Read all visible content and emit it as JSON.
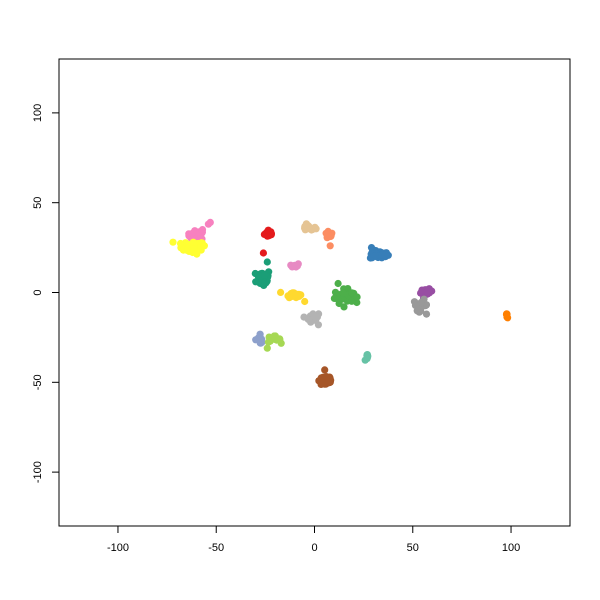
{
  "chart_data": {
    "type": "scatter",
    "title": "",
    "xlabel": "",
    "ylabel": "",
    "xlim": [
      -130,
      130
    ],
    "ylim": [
      -130,
      130
    ],
    "xticks": [
      -100,
      -50,
      0,
      50,
      100
    ],
    "yticks": [
      -100,
      -50,
      0,
      50,
      100
    ],
    "xtick_labels": [
      "-100",
      "-50",
      "0",
      "50",
      "100"
    ],
    "ytick_labels": [
      "-100",
      "-50",
      "0",
      "50",
      "100"
    ],
    "grid": false,
    "legend": "none",
    "series": [
      {
        "color": "#e41a1c",
        "center": [
          -23,
          33
        ],
        "spread": [
          2,
          2
        ],
        "n": 14,
        "points": [
          [
            -26,
            22
          ]
        ]
      },
      {
        "color": "#f781bf",
        "center": [
          -60,
          32
        ],
        "spread": [
          4,
          2
        ],
        "n": 20,
        "points": [
          [
            -54,
            38
          ],
          [
            -53,
            39
          ],
          [
            -57,
            35
          ]
        ]
      },
      {
        "color": "#ffff33",
        "center": [
          -62,
          25
        ],
        "spread": [
          5,
          3
        ],
        "n": 32,
        "points": [
          [
            -72,
            28
          ],
          [
            -56,
            26
          ]
        ]
      },
      {
        "color": "#e5c494",
        "center": [
          -3,
          36
        ],
        "spread": [
          3,
          1.5
        ],
        "n": 16,
        "points": []
      },
      {
        "color": "#fc8d62",
        "center": [
          7,
          32
        ],
        "spread": [
          2,
          2
        ],
        "n": 12,
        "points": [
          [
            8,
            26
          ]
        ]
      },
      {
        "color": "#377eb8",
        "center": [
          33,
          21
        ],
        "spread": [
          4,
          2
        ],
        "n": 26,
        "points": [
          [
            29,
            25
          ]
        ]
      },
      {
        "color": "#1b9e77",
        "center": [
          -26,
          8
        ],
        "spread": [
          3,
          4
        ],
        "n": 40,
        "points": [
          [
            -24,
            17
          ]
        ]
      },
      {
        "color": "#e78ac3",
        "center": [
          -10,
          15
        ],
        "spread": [
          2,
          1
        ],
        "n": 10,
        "points": []
      },
      {
        "color": "#ffd92f",
        "center": [
          -11,
          -1
        ],
        "spread": [
          3,
          1.5
        ],
        "n": 18,
        "points": [
          [
            -5,
            -5
          ]
        ]
      },
      {
        "color": "#4daf4a",
        "center": [
          15,
          -2
        ],
        "spread": [
          4,
          3
        ],
        "n": 40,
        "points": [
          [
            12,
            5
          ],
          [
            15,
            -8
          ]
        ]
      },
      {
        "color": "#b3b3b3",
        "center": [
          -1,
          -14
        ],
        "spread": [
          2.5,
          2
        ],
        "n": 22,
        "points": [
          [
            2,
            -18
          ]
        ]
      },
      {
        "color": "#984ea3",
        "center": [
          57,
          0
        ],
        "spread": [
          2.5,
          1.5
        ],
        "n": 18,
        "points": []
      },
      {
        "color": "#999999",
        "center": [
          54,
          -7
        ],
        "spread": [
          3,
          2.5
        ],
        "n": 24,
        "points": [
          [
            57,
            -12
          ]
        ]
      },
      {
        "color": "#ff7f00",
        "center": [
          98,
          -13
        ],
        "spread": [
          0.6,
          1
        ],
        "n": 6,
        "points": []
      },
      {
        "color": "#8da0cb",
        "center": [
          -28,
          -26
        ],
        "spread": [
          2,
          2
        ],
        "n": 12,
        "points": []
      },
      {
        "color": "#a6d854",
        "center": [
          -21,
          -26
        ],
        "spread": [
          3,
          1.5
        ],
        "n": 14,
        "points": [
          [
            -24,
            -31
          ]
        ]
      },
      {
        "color": "#66c2a5",
        "center": [
          27,
          -36
        ],
        "spread": [
          1,
          1.5
        ],
        "n": 8,
        "points": []
      },
      {
        "color": "#a65628",
        "center": [
          6,
          -49
        ],
        "spread": [
          3,
          3
        ],
        "n": 40,
        "points": []
      }
    ]
  }
}
